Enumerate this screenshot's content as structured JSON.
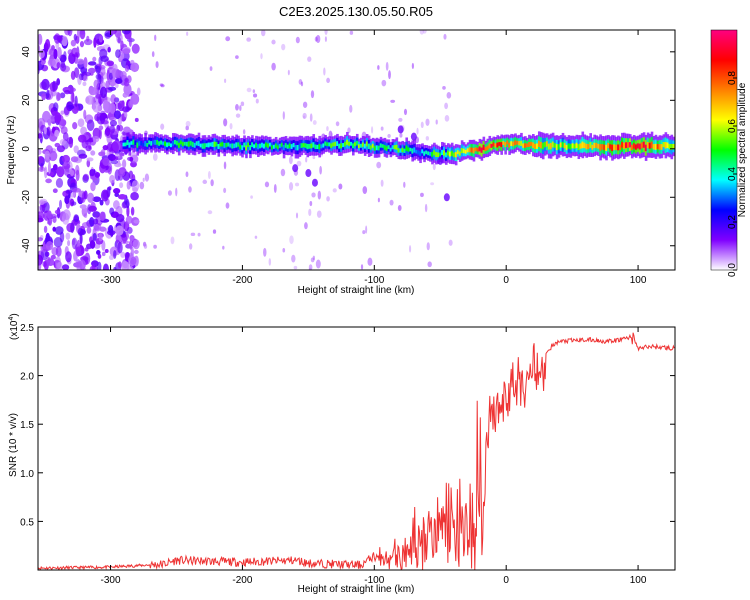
{
  "title": "C2E3.2025.130.05.50.R05",
  "chart_data": [
    {
      "type": "heatmap",
      "xlabel": "Height of straight line (km)",
      "ylabel": "Frequency (Hz)",
      "xlim": [
        -355,
        128
      ],
      "ylim": [
        -50,
        49
      ],
      "xticks": [
        -300,
        -200,
        -100,
        0,
        100
      ],
      "yticks": [
        -40,
        -20,
        0,
        20,
        40
      ],
      "colorbar": {
        "label": "Normalized spectral amplitude",
        "range": [
          0.0,
          1.0
        ],
        "ticks": [
          0.0,
          0.2,
          0.4,
          0.6,
          0.8
        ],
        "colors": [
          "#ffffff",
          "#8000ff",
          "#0000ff",
          "#00ffff",
          "#00ff00",
          "#ffff00",
          "#ff8000",
          "#ff0000",
          "#ff0080"
        ]
      },
      "ridge": {
        "description_points_x": [
          -290,
          -250,
          -200,
          -160,
          -120,
          -80,
          -60,
          -40,
          -20,
          0,
          50,
          100,
          128
        ],
        "frequency": [
          2,
          2,
          1,
          1,
          2,
          0,
          -2,
          -2,
          0,
          2,
          1,
          1,
          1
        ],
        "amplitude": [
          0.35,
          0.4,
          0.45,
          0.4,
          0.5,
          0.45,
          0.4,
          0.55,
          0.9,
          0.75,
          0.55,
          0.9,
          0.55
        ]
      }
    },
    {
      "type": "line",
      "xlabel": "Height of straight line (km)",
      "ylabel": "SNR (10 * v/v)",
      "y_multiplier": "(x10",
      "y_multiplier_exp": "4",
      "y_multiplier_close": ")",
      "xlim": [
        -355,
        128
      ],
      "ylim": [
        0,
        2.5
      ],
      "xticks": [
        -300,
        -200,
        -100,
        0,
        100
      ],
      "yticks": [
        0.5,
        1.0,
        1.5,
        2.0,
        2.5
      ],
      "series": [
        {
          "color": "#ee3333",
          "x": [
            -355,
            -300,
            -260,
            -250,
            -200,
            -160,
            -150,
            -110,
            -100,
            -90,
            -80,
            -70,
            -60,
            -50,
            -45,
            -40,
            -35,
            -30,
            -25,
            -20,
            -18,
            -15,
            -10,
            -5,
            0,
            10,
            20,
            30,
            40,
            60,
            80,
            95,
            100,
            110,
            128
          ],
          "y": [
            0.02,
            0.03,
            0.06,
            0.1,
            0.08,
            0.1,
            0.07,
            0.05,
            0.15,
            0.2,
            0.3,
            0.45,
            0.6,
            0.75,
            0.95,
            0.9,
            1.0,
            0.95,
            1.2,
            1.5,
            0.3,
            1.6,
            1.8,
            1.85,
            1.95,
            2.05,
            2.15,
            2.25,
            2.35,
            2.37,
            2.35,
            2.4,
            2.28,
            2.3,
            2.28
          ]
        }
      ]
    }
  ]
}
